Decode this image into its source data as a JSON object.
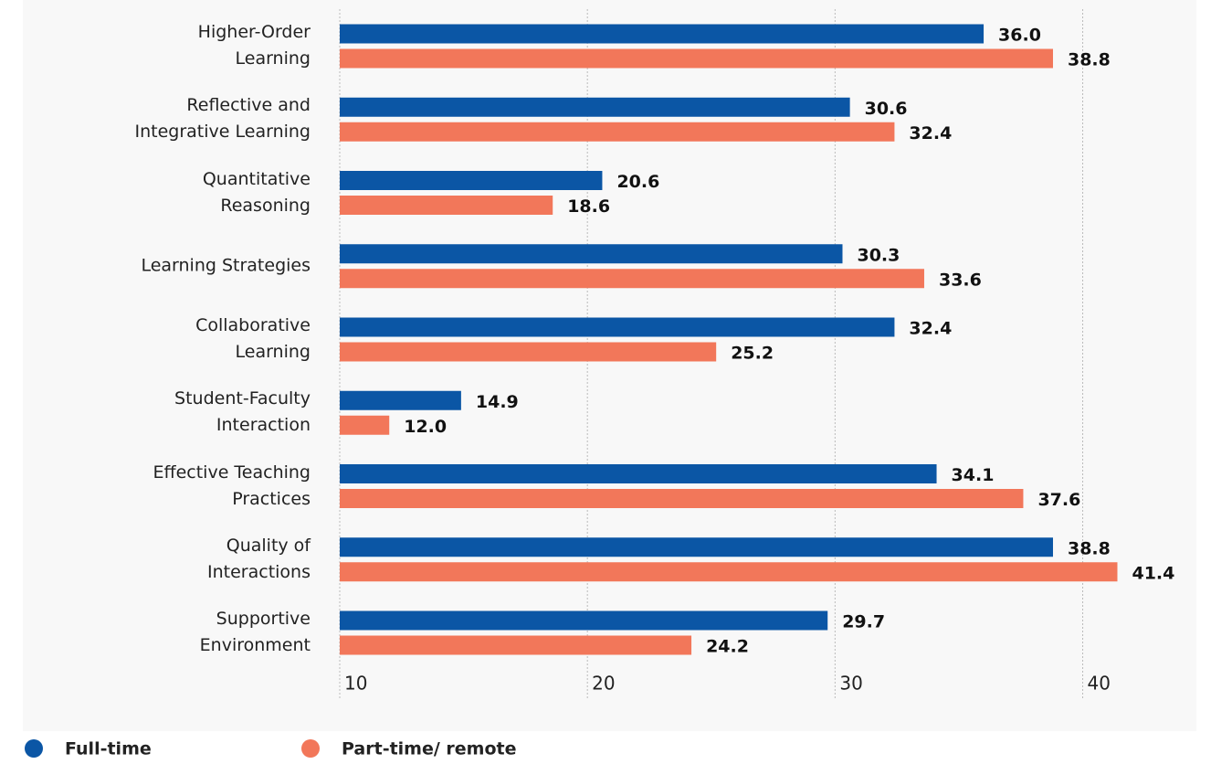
{
  "chart_data": {
    "type": "bar",
    "orientation": "horizontal",
    "categories": [
      "Higher-Order\nLearning",
      "Reflective and\nIntegrative Learning",
      "Quantitative\nReasoning",
      "Learning Strategies",
      "Collaborative\nLearning",
      "Student-Faculty\nInteraction",
      "Effective Teaching\nPractices",
      "Quality of\nInteractions",
      "Supportive\nEnvironment"
    ],
    "series": [
      {
        "name": "Full-time",
        "color": "#0b56a5",
        "values": [
          36.0,
          30.6,
          20.6,
          30.3,
          32.4,
          14.9,
          34.1,
          38.8,
          29.7
        ],
        "value_labels": [
          "36.0",
          "30.6",
          "20.6",
          "30.3",
          "32.4",
          "14.9",
          "34.1",
          "38.8",
          "29.7"
        ]
      },
      {
        "name": "Part-time/ remote",
        "color": "#f2775a",
        "values": [
          38.8,
          32.4,
          18.6,
          33.6,
          25.2,
          12.0,
          37.6,
          41.4,
          24.2
        ],
        "value_labels": [
          "38.8",
          "32.4",
          "18.6",
          "33.6",
          "25.2",
          "12.0",
          "37.6",
          "41.4",
          "24.2"
        ]
      }
    ],
    "xlim": [
      10,
      44
    ],
    "xticks": [
      10,
      20,
      30,
      40
    ],
    "grid": true,
    "legend": "bottom-left"
  }
}
